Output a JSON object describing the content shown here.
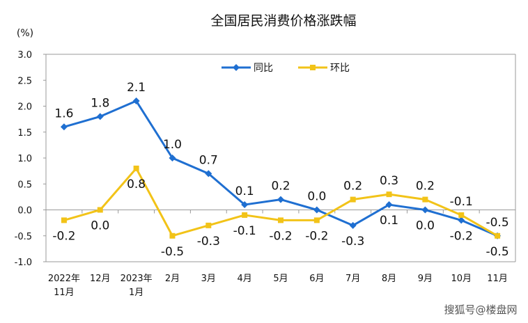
{
  "chart_data": {
    "type": "line",
    "title": "全国居民消费价格涨跌幅",
    "ylabel": "(%)",
    "xlabel": "",
    "ylim": [
      -1.0,
      3.0
    ],
    "yticks": [
      "3.0",
      "2.5",
      "2.0",
      "1.5",
      "1.0",
      "0.5",
      "0.0",
      "-0.5",
      "-1.0"
    ],
    "categories": [
      [
        "2022年",
        "11月"
      ],
      [
        "12月"
      ],
      [
        "2023年",
        "1月"
      ],
      [
        "2月"
      ],
      [
        "3月"
      ],
      [
        "4月"
      ],
      [
        "5月"
      ],
      [
        "6月"
      ],
      [
        "7月"
      ],
      [
        "8月"
      ],
      [
        "9月"
      ],
      [
        "10月"
      ],
      [
        "11月"
      ]
    ],
    "series": [
      {
        "name": "同比",
        "color": "#1f6fd1",
        "marker": "diamond",
        "values": [
          1.6,
          1.8,
          2.1,
          1.0,
          0.7,
          0.1,
          0.2,
          0.0,
          -0.3,
          0.1,
          0.0,
          -0.2,
          -0.5
        ],
        "labels": [
          "1.6",
          "1.8",
          "2.1",
          "1.0",
          "0.7",
          "0.1",
          "0.2",
          "0.0",
          "-0.3",
          "0.1",
          "0.0",
          "-0.2",
          "-0.5"
        ],
        "label_pos": [
          "above",
          "above",
          "above",
          "above",
          "above",
          "above",
          "above",
          "above",
          "below",
          "below",
          "below",
          "below",
          "above"
        ]
      },
      {
        "name": "环比",
        "color": "#f2c318",
        "marker": "square",
        "values": [
          -0.2,
          0.0,
          0.8,
          -0.5,
          -0.3,
          -0.1,
          -0.2,
          -0.2,
          0.2,
          0.3,
          0.2,
          -0.1,
          -0.5
        ],
        "labels": [
          "-0.2",
          "0.0",
          "0.8",
          "-0.5",
          "-0.3",
          "-0.1",
          "-0.2",
          "-0.2",
          "0.2",
          "0.3",
          "0.2",
          "-0.1",
          "-0.5"
        ],
        "label_pos": [
          "below",
          "below",
          "below",
          "below",
          "below",
          "below",
          "below",
          "below",
          "above",
          "above",
          "above",
          "above",
          "below"
        ]
      }
    ],
    "legend_position": "top-center",
    "grid": false
  },
  "watermark": "搜狐号@楼盘网"
}
